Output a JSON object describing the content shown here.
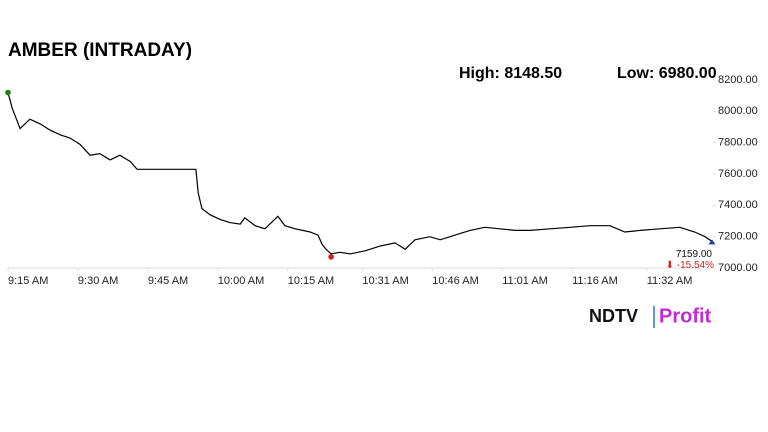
{
  "chart_data": {
    "type": "line",
    "title": "AMBER (INTRADAY)",
    "stats": {
      "high": "High: 8148.50",
      "low": "Low: 6980.00"
    },
    "x": [
      555,
      555.9,
      557.6,
      559.7,
      561.9,
      564,
      566.2,
      568.3,
      570.4,
      572.6,
      574.7,
      576.9,
      579,
      581.2,
      582.7,
      595.3,
      595.8,
      596.6,
      598.3,
      600.5,
      602.6,
      604.8,
      605.8,
      608,
      610.1,
      612.9,
      614.4,
      616.6,
      619.8,
      621.5,
      622.4,
      623.2,
      624.3,
      626.2,
      628.4,
      631.6,
      634.8,
      638,
      640.2,
      642.3,
      645.5,
      647.7,
      650.9,
      654.1,
      657.3,
      660.5,
      663.8,
      667,
      671.3,
      675.6,
      679.8,
      684.1,
      687.3,
      690.6,
      694.9,
      699.1,
      702.3,
      704.5,
      706
    ],
    "series": [
      {
        "name": "AMBER",
        "color": "#000000",
        "values": [
          8120,
          8020,
          7890,
          7950,
          7920,
          7880,
          7850,
          7830,
          7790,
          7720,
          7730,
          7690,
          7720,
          7680,
          7630,
          7630,
          7480,
          7380,
          7340,
          7310,
          7290,
          7280,
          7320,
          7270,
          7250,
          7330,
          7270,
          7250,
          7230,
          7210,
          7150,
          7120,
          7090,
          7100,
          7090,
          7110,
          7140,
          7160,
          7120,
          7180,
          7200,
          7180,
          7210,
          7240,
          7260,
          7250,
          7240,
          7240,
          7250,
          7260,
          7270,
          7270,
          7230,
          7240,
          7250,
          7260,
          7230,
          7200,
          7170
        ]
      }
    ],
    "xlim": [
      555,
      706
    ],
    "xticks": [
      {
        "value": 555,
        "label": "9:15 AM"
      },
      {
        "value": 570,
        "label": "9:30 AM"
      },
      {
        "value": 585,
        "label": "9:45 AM"
      },
      {
        "value": 600,
        "label": "10:00 AM"
      },
      {
        "value": 615,
        "label": "10:15 AM"
      },
      {
        "value": 631,
        "label": "10:31 AM"
      },
      {
        "value": 646,
        "label": "10:46 AM"
      },
      {
        "value": 661,
        "label": "11:01 AM"
      },
      {
        "value": 676,
        "label": "11:16 AM"
      },
      {
        "value": 692,
        "label": "11:32 AM"
      }
    ],
    "ylim": [
      7000,
      8200
    ],
    "yticks": [
      {
        "value": 7000,
        "label": "7000.00"
      },
      {
        "value": 7200,
        "label": "7200.00"
      },
      {
        "value": 7400,
        "label": "7400.00"
      },
      {
        "value": 7600,
        "label": "7600.00"
      },
      {
        "value": 7800,
        "label": "7800.00"
      },
      {
        "value": 8000,
        "label": "8000.00"
      },
      {
        "value": 8200,
        "label": "8200.00"
      }
    ],
    "grid": false,
    "start_color": "#1a7f1a",
    "low_color": "#d0201c",
    "end_color": "#1f3fa8",
    "annotations": {
      "last_price": "7159.00",
      "change": "⬇ -15.54%",
      "change_color": "#d0201c"
    },
    "logo": {
      "brand": "NDTV",
      "product": "Profit"
    }
  }
}
